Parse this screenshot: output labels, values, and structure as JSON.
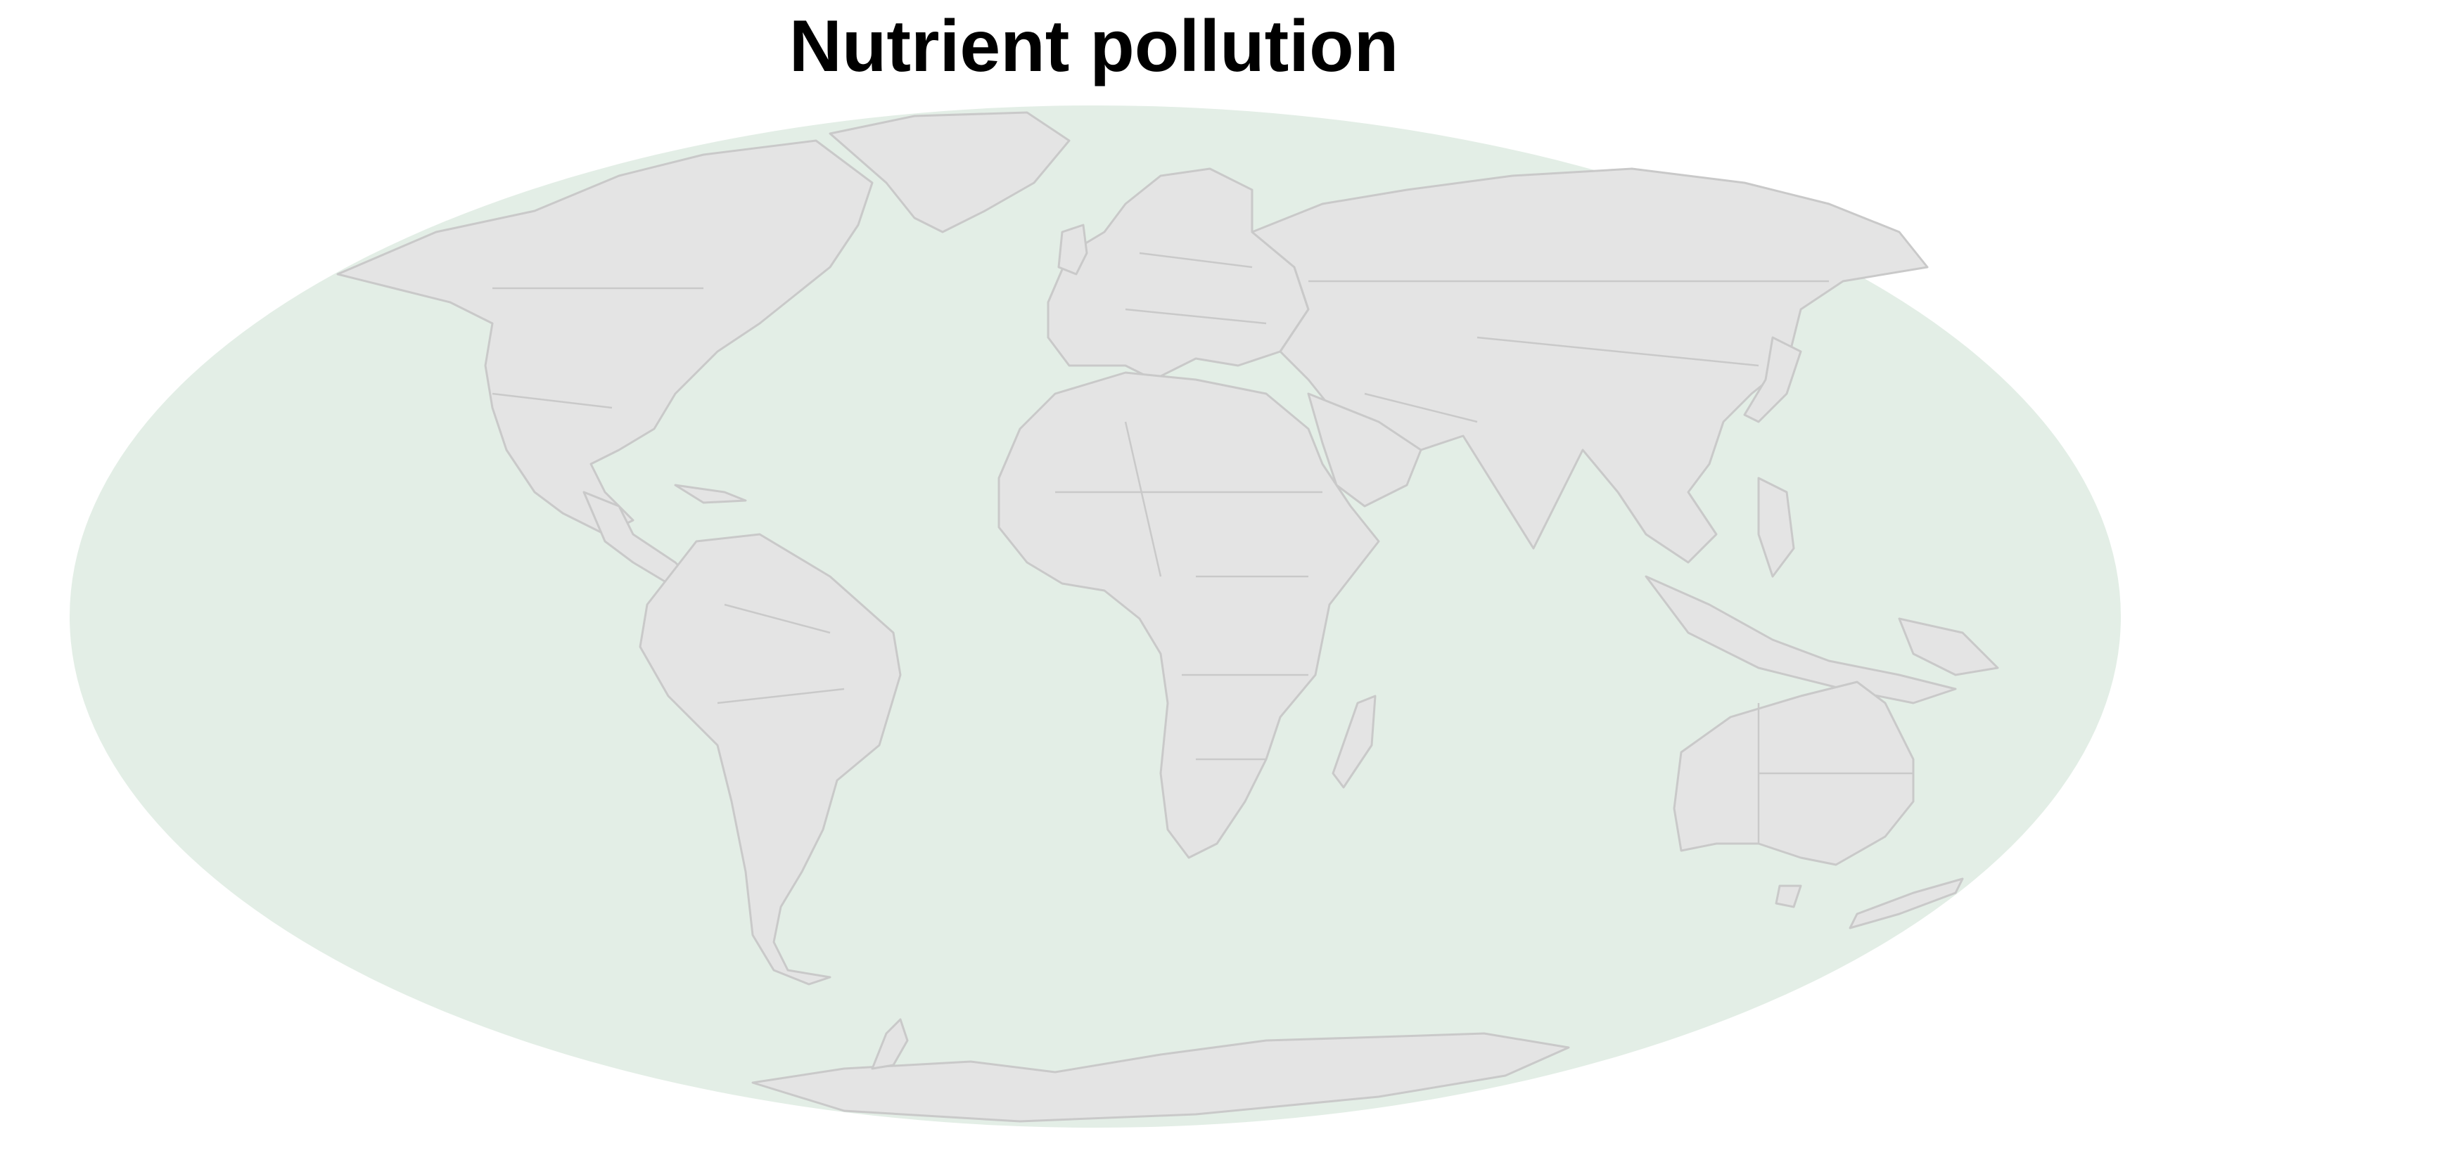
{
  "title": "Nutrient pollution",
  "map": {
    "projection": "Mollweide",
    "ocean_color": "#e3eee6",
    "land_color": "#e4e4e4",
    "border_color": "#c9c9c9",
    "background_color": "#ffffff"
  }
}
